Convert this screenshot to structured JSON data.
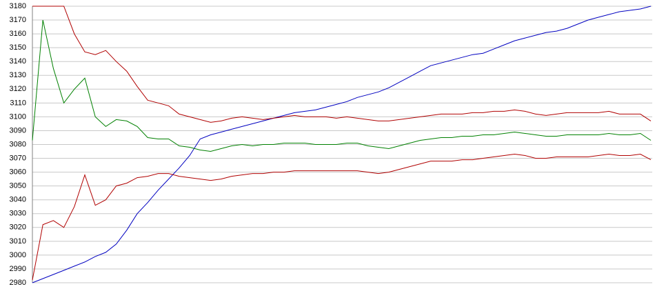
{
  "chart_data": {
    "type": "line",
    "categories": [
      null,
      null,
      null,
      null,
      null,
      null,
      null,
      null,
      null,
      null,
      null,
      null,
      null,
      null,
      null,
      null,
      null,
      null,
      null,
      null,
      null,
      null,
      null,
      null,
      null,
      null,
      null,
      null,
      null,
      null,
      null,
      null,
      null,
      null,
      null,
      null,
      null,
      null,
      null,
      null,
      null,
      null,
      null,
      null,
      null,
      null,
      null,
      null,
      null,
      null,
      null,
      null,
      null,
      null,
      null,
      null,
      null,
      null,
      null,
      null
    ],
    "ylim": [
      2980,
      3180
    ],
    "yticks": [
      2980,
      2990,
      3000,
      3010,
      3020,
      3030,
      3040,
      3050,
      3060,
      3070,
      3080,
      3090,
      3100,
      3110,
      3120,
      3130,
      3140,
      3150,
      3160,
      3170,
      3180
    ],
    "grid": true,
    "series": [
      {
        "color": "#0000c0",
        "values": [
          2980,
          2983,
          2986,
          2989,
          2992,
          2995,
          2999,
          3002,
          3008,
          3018,
          3030,
          3038,
          3047,
          3055,
          3063,
          3072,
          3084,
          3087,
          3089,
          3091,
          3093,
          3095,
          3097,
          3099,
          3101,
          3103,
          3104,
          3105,
          3107,
          3109,
          3111,
          3114,
          3116,
          3118,
          3121,
          3125,
          3129,
          3133,
          3137,
          3139,
          3141,
          3143,
          3145,
          3146,
          3149,
          3152,
          3155,
          3157,
          3159,
          3161,
          3162,
          3164,
          3167,
          3170,
          3172,
          3174,
          3176,
          3177,
          3178,
          3180
        ]
      },
      {
        "color": "#b00000",
        "values": [
          3180,
          3180,
          3180,
          3180,
          3160,
          3147,
          3145,
          3148,
          3140,
          3133,
          3122,
          3112,
          3110,
          3108,
          3102,
          3100,
          3098,
          3096,
          3097,
          3099,
          3100,
          3099,
          3098,
          3099,
          3100,
          3101,
          3100,
          3100,
          3100,
          3099,
          3100,
          3099,
          3098,
          3097,
          3097,
          3098,
          3099,
          3100,
          3101,
          3102,
          3102,
          3102,
          3103,
          3103,
          3104,
          3104,
          3105,
          3104,
          3102,
          3101,
          3102,
          3103,
          3103,
          3103,
          3103,
          3104,
          3102,
          3102,
          3102,
          3097
        ]
      },
      {
        "color": "#008000",
        "values": [
          3083,
          3170,
          3135,
          3110,
          3120,
          3128,
          3100,
          3093,
          3098,
          3097,
          3093,
          3085,
          3084,
          3084,
          3079,
          3078,
          3076,
          3075,
          3077,
          3079,
          3080,
          3079,
          3080,
          3080,
          3081,
          3081,
          3081,
          3080,
          3080,
          3080,
          3081,
          3081,
          3079,
          3078,
          3077,
          3079,
          3081,
          3083,
          3084,
          3085,
          3085,
          3086,
          3086,
          3087,
          3087,
          3088,
          3089,
          3088,
          3087,
          3086,
          3086,
          3087,
          3087,
          3087,
          3087,
          3088,
          3087,
          3087,
          3088,
          3083
        ]
      },
      {
        "color": "#b00000",
        "values": [
          2982,
          3022,
          3025,
          3020,
          3035,
          3058,
          3036,
          3040,
          3050,
          3052,
          3056,
          3057,
          3059,
          3059,
          3057,
          3056,
          3055,
          3054,
          3055,
          3057,
          3058,
          3059,
          3059,
          3060,
          3060,
          3061,
          3061,
          3061,
          3061,
          3061,
          3061,
          3061,
          3060,
          3059,
          3060,
          3062,
          3064,
          3066,
          3068,
          3068,
          3068,
          3069,
          3069,
          3070,
          3071,
          3072,
          3073,
          3072,
          3070,
          3070,
          3071,
          3071,
          3071,
          3071,
          3072,
          3073,
          3072,
          3072,
          3073,
          3069
        ]
      }
    ]
  }
}
